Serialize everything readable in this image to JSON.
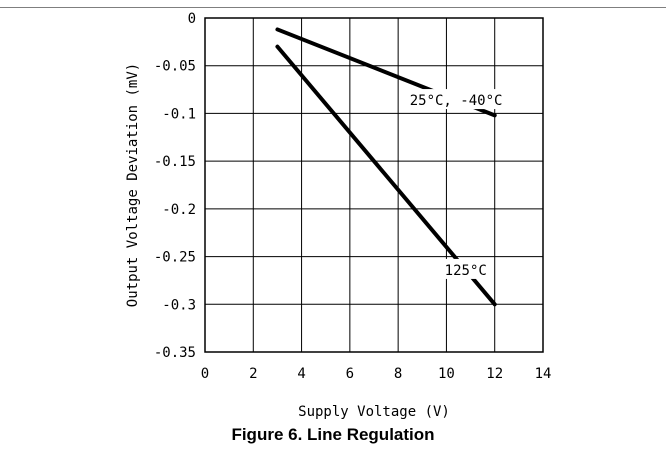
{
  "caption": "Figure 6. Line Regulation",
  "chart_data": {
    "type": "line",
    "title": "",
    "xlabel": "Supply Voltage (V)",
    "ylabel": "Output Voltage Deviation (mV)",
    "xlim": [
      0,
      14
    ],
    "ylim": [
      -0.35,
      0
    ],
    "x_ticks": [
      0,
      2,
      4,
      6,
      8,
      10,
      12,
      14
    ],
    "y_ticks": [
      0,
      -0.05,
      -0.1,
      -0.15,
      -0.2,
      -0.25,
      -0.3,
      -0.35
    ],
    "x_tick_labels": [
      "0",
      "2",
      "4",
      "6",
      "8",
      "10",
      "12",
      "14"
    ],
    "y_tick_labels": [
      "0",
      "-0.05",
      "-0.1",
      "-0.15",
      "-0.2",
      "-0.25",
      "-0.3",
      "-0.35"
    ],
    "grid": true,
    "legend": "none",
    "series": [
      {
        "name": "25°C, -40°C",
        "x": [
          3,
          12
        ],
        "y": [
          -0.012,
          -0.102
        ]
      },
      {
        "name": "125°C",
        "x": [
          3,
          12
        ],
        "y": [
          -0.03,
          -0.3
        ]
      }
    ],
    "line_color": "#000000"
  }
}
